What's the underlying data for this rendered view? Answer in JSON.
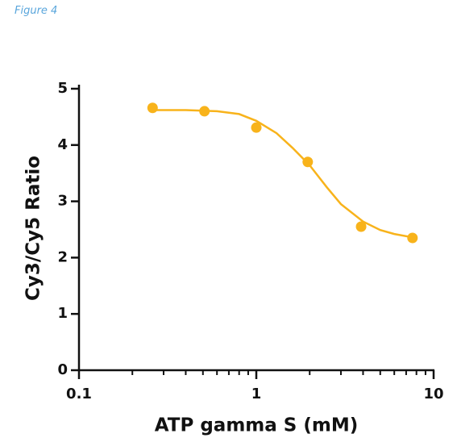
{
  "header": {
    "caption": "Figure 4"
  },
  "chart_data": {
    "type": "scatter",
    "x_label": "ATP gamma S (mM)",
    "y_label": "Cy3/Cy5 Ratio",
    "xscale": "log",
    "xlim": [
      0.1,
      10
    ],
    "xticks": [
      0.1,
      1,
      10
    ],
    "xminor_ticks": [
      0.2,
      0.3,
      0.4,
      0.5,
      0.6,
      0.7,
      0.8,
      0.9,
      2,
      3,
      4,
      5,
      6,
      7,
      8,
      9
    ],
    "ylim": [
      0,
      5
    ],
    "yticks": [
      0,
      1,
      2,
      3,
      4,
      5
    ],
    "series": [
      {
        "color": "#f8b31b",
        "x": [
          0.26,
          0.51,
          1,
          1.95,
          3.9,
          7.6
        ],
        "values": [
          4.66,
          4.6,
          4.31,
          3.7,
          2.55,
          2.35
        ]
      }
    ],
    "fit": {
      "color": "#f8b31b",
      "x": [
        0.26,
        0.4,
        0.6,
        0.8,
        1,
        1.3,
        1.6,
        2,
        2.5,
        3,
        4,
        5,
        6,
        7.6
      ],
      "values": [
        4.62,
        4.62,
        4.6,
        4.55,
        4.43,
        4.21,
        3.95,
        3.64,
        3.25,
        2.95,
        2.64,
        2.49,
        2.42,
        2.36
      ]
    }
  }
}
